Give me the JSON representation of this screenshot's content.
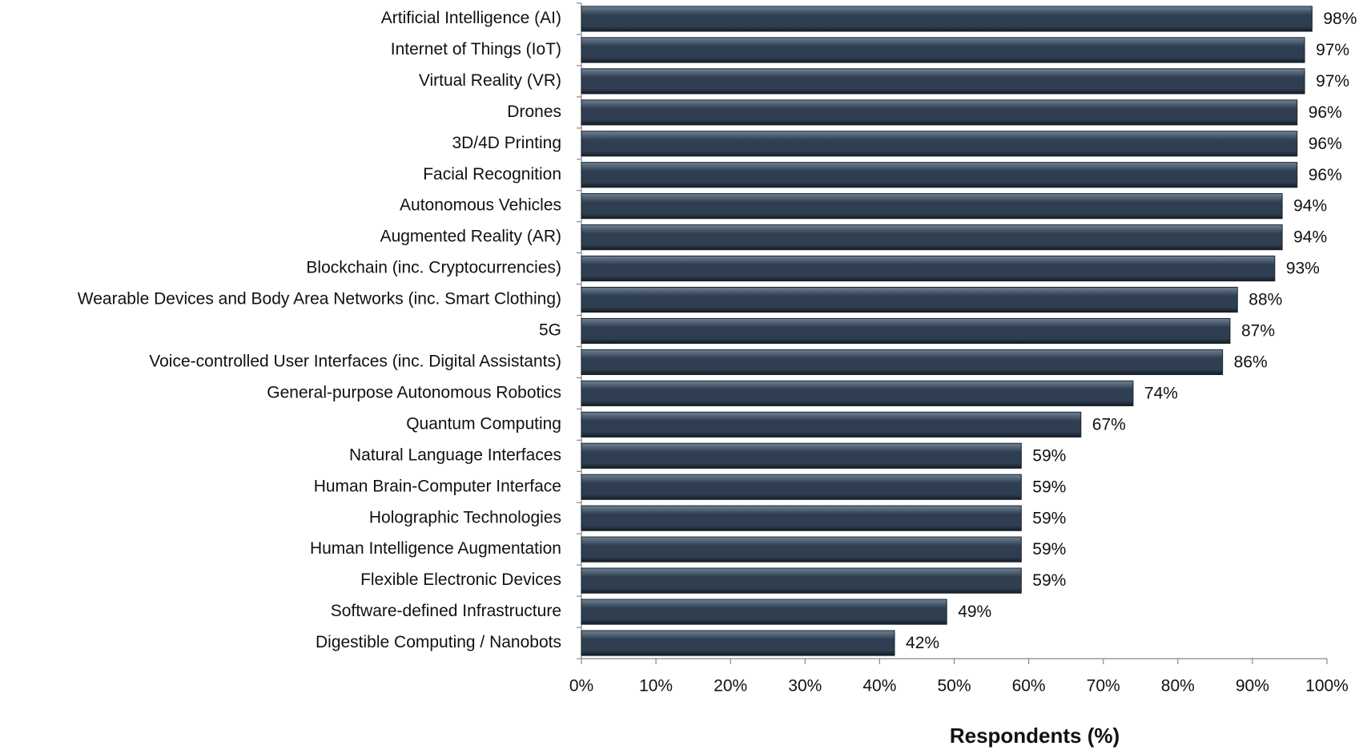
{
  "chart_data": {
    "type": "bar",
    "orientation": "horizontal",
    "x_label": "Respondents (%)",
    "categories": [
      "Artificial Intelligence (AI)",
      "Internet of Things (IoT)",
      "Virtual Reality (VR)",
      "Drones",
      "3D/4D Printing",
      "Facial Recognition",
      "Autonomous Vehicles",
      "Augmented Reality (AR)",
      "Blockchain (inc. Cryptocurrencies)",
      "Wearable Devices and Body Area Networks (inc. Smart Clothing)",
      "5G",
      "Voice-controlled User Interfaces (inc. Digital Assistants)",
      "General-purpose Autonomous Robotics",
      "Quantum Computing",
      "Natural Language Interfaces",
      "Human Brain-Computer Interface",
      "Holographic Technologies",
      "Human Intelligence Augmentation",
      "Flexible Electronic Devices",
      "Software-defined Infrastructure",
      "Digestible Computing / Nanobots"
    ],
    "values": [
      98,
      97,
      97,
      96,
      96,
      96,
      94,
      94,
      93,
      88,
      87,
      86,
      74,
      67,
      59,
      59,
      59,
      59,
      59,
      49,
      42
    ],
    "value_labels": [
      "98%",
      "97%",
      "97%",
      "96%",
      "96%",
      "96%",
      "94%",
      "94%",
      "93%",
      "88%",
      "87%",
      "86%",
      "74%",
      "67%",
      "59%",
      "59%",
      "59%",
      "59%",
      "59%",
      "49%",
      "42%"
    ],
    "color": "#2f3e50",
    "xlim": [
      0,
      100
    ],
    "xticks": [
      {
        "value": 0,
        "label": "0%"
      },
      {
        "value": 10,
        "label": "10%"
      },
      {
        "value": 20,
        "label": "20%"
      },
      {
        "value": 30,
        "label": "30%"
      },
      {
        "value": 40,
        "label": "40%"
      },
      {
        "value": 50,
        "label": "50%"
      },
      {
        "value": 60,
        "label": "60%"
      },
      {
        "value": 70,
        "label": "70%"
      },
      {
        "value": 80,
        "label": "80%"
      },
      {
        "value": 90,
        "label": "90%"
      },
      {
        "value": 100,
        "label": "100%"
      }
    ],
    "grid": false
  }
}
